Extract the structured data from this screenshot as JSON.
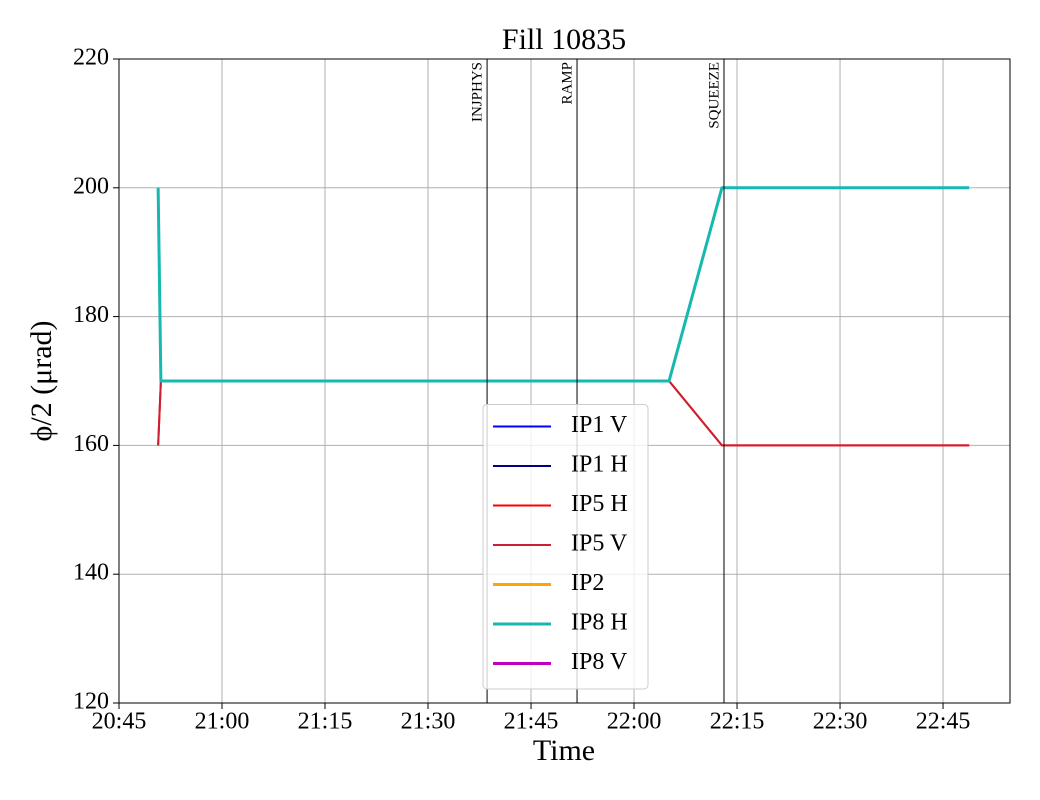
{
  "chart_data": {
    "type": "line",
    "title": "Fill 10835",
    "xlabel": "Time",
    "ylabel": "ϕ/2 (μrad)",
    "x": [
      1250.7,
      1251.1,
      1325.1,
      1332.8,
      1368.8
    ],
    "series": [
      {
        "name": "IP1 V",
        "color": "#0000ff",
        "width": 2,
        "values": [
          null,
          null,
          null,
          null,
          null
        ]
      },
      {
        "name": "IP1 H",
        "color": "#000080",
        "width": 2,
        "values": [
          null,
          null,
          null,
          null,
          null
        ]
      },
      {
        "name": "IP5 H",
        "color": "#ff0000",
        "width": 2,
        "values": [
          160,
          170,
          170,
          160,
          160
        ]
      },
      {
        "name": "IP5 V",
        "color": "#cc1f2f",
        "width": 2,
        "values": [
          160,
          170,
          170,
          160,
          160
        ]
      },
      {
        "name": "IP2",
        "color": "#ffa500",
        "width": 3,
        "values": [
          null,
          null,
          null,
          null,
          null
        ]
      },
      {
        "name": "IP8 H",
        "color": "#17b8b0",
        "width": 3,
        "values": [
          200,
          170,
          170,
          200,
          200
        ]
      },
      {
        "name": "IP8 V",
        "color": "#c000c0",
        "width": 3,
        "values": [
          null,
          null,
          null,
          null,
          null
        ]
      }
    ],
    "events": [
      {
        "label": "INJPHYS",
        "x": 1298.6
      },
      {
        "label": "RAMP",
        "x": 1311.7
      },
      {
        "label": "SQUEEZE",
        "x": 1333.1
      }
    ],
    "xlim": [
      1245,
      1374.75
    ],
    "xticks": [
      {
        "value": 1245,
        "label": "20:45"
      },
      {
        "value": 1260,
        "label": "21:00"
      },
      {
        "value": 1275,
        "label": "21:15"
      },
      {
        "value": 1290,
        "label": "21:30"
      },
      {
        "value": 1305,
        "label": "21:45"
      },
      {
        "value": 1320,
        "label": "22:00"
      },
      {
        "value": 1335,
        "label": "22:15"
      },
      {
        "value": 1350,
        "label": "22:30"
      },
      {
        "value": 1365,
        "label": "22:45"
      }
    ],
    "ylim": [
      120,
      220
    ],
    "yticks": [
      120,
      140,
      160,
      180,
      200,
      220
    ],
    "grid": true,
    "legend": "lower center"
  }
}
